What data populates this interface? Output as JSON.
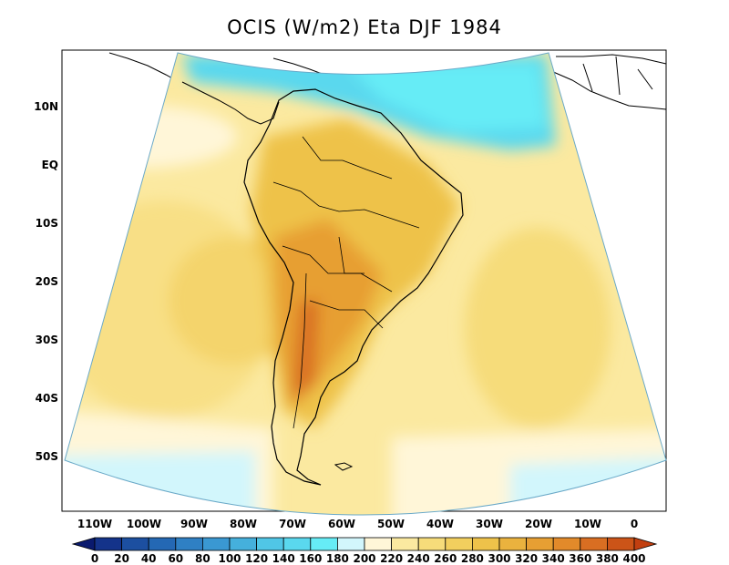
{
  "title": "OCIS (W/m2) Eta DJF 1984",
  "lat_labels": [
    "10N",
    "EQ",
    "10S",
    "20S",
    "30S",
    "40S",
    "50S"
  ],
  "lon_labels": [
    "110W",
    "100W",
    "90W",
    "80W",
    "70W",
    "60W",
    "50W",
    "40W",
    "30W",
    "20W",
    "10W",
    "0"
  ],
  "colorbar": {
    "levels": [
      "0",
      "20",
      "40",
      "60",
      "80",
      "100",
      "120",
      "140",
      "160",
      "180",
      "200",
      "220",
      "240",
      "260",
      "280",
      "300",
      "320",
      "340",
      "360",
      "380",
      "400"
    ],
    "colors": [
      "#0a1a6e",
      "#14338a",
      "#1c4fa0",
      "#2468b4",
      "#2f80c4",
      "#3a98d2",
      "#45b0dc",
      "#50c6e6",
      "#5ad8ee",
      "#66ecf6",
      "#d2f6fc",
      "#fff6d8",
      "#fbe9a0",
      "#f6dc7a",
      "#f2cf5e",
      "#eec24a",
      "#eab23e",
      "#e79f33",
      "#e28a2a",
      "#d96e22",
      "#cc5418",
      "#c23f10"
    ]
  }
}
